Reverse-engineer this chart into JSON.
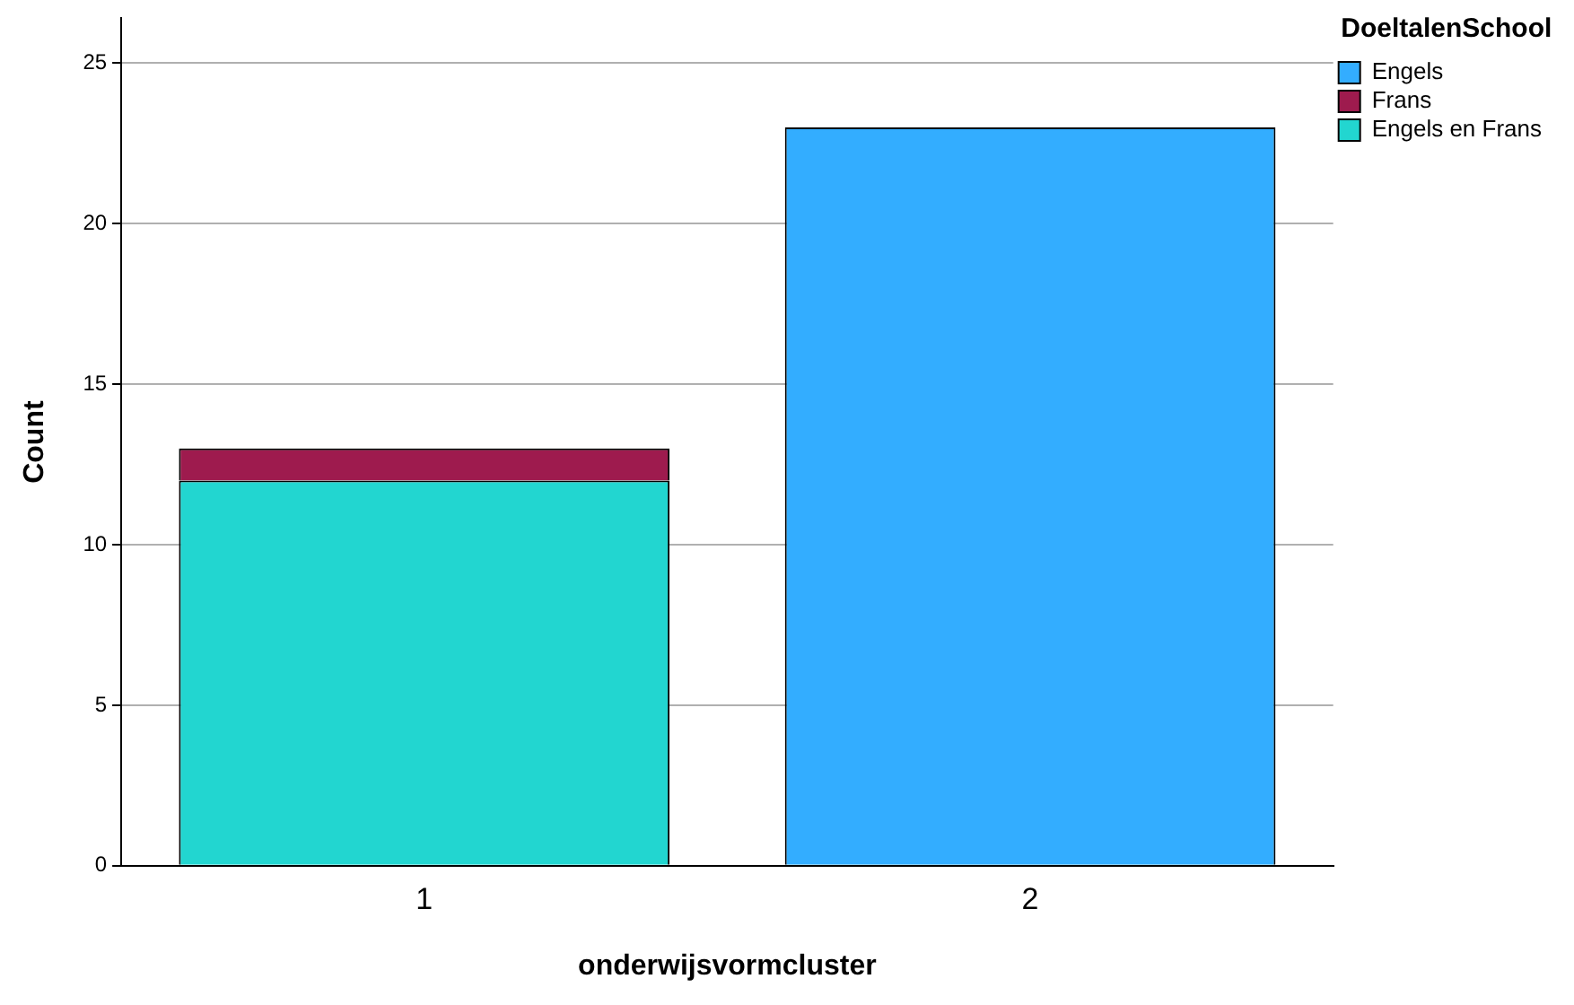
{
  "chart_data": {
    "type": "bar",
    "xlabel": "onderwijsvormcluster",
    "ylabel": "Count",
    "legend_title": "DoeltalenSchool",
    "categories": [
      "1",
      "2"
    ],
    "stacked": true,
    "series": [
      {
        "name": "Engels en Frans",
        "color": "#22d6d0",
        "values": [
          12,
          null
        ]
      },
      {
        "name": "Frans",
        "color": "#9e1b4e",
        "values": [
          1,
          null
        ]
      },
      {
        "name": "Engels",
        "color": "#33adff",
        "values": [
          null,
          23
        ]
      }
    ],
    "ylim": [
      0,
      26.4
    ],
    "yticks": [
      0,
      5,
      10,
      15,
      20,
      25
    ],
    "grid": "y",
    "legend": "top right"
  }
}
